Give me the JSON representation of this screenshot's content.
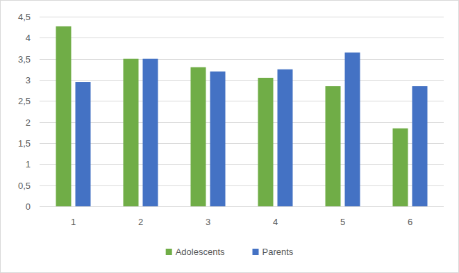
{
  "chart_data": {
    "type": "bar",
    "categories": [
      "1",
      "2",
      "3",
      "4",
      "5",
      "6"
    ],
    "series": [
      {
        "name": "Adolescents",
        "color": "#70ad47",
        "values": [
          4.27,
          3.5,
          3.3,
          3.05,
          2.85,
          1.85
        ]
      },
      {
        "name": "Parents",
        "color": "#4472c4",
        "values": [
          2.95,
          3.5,
          3.2,
          3.25,
          3.65,
          2.85
        ]
      }
    ],
    "ylim": [
      0,
      4.5
    ],
    "yticks": [
      0,
      {
        "value": 0.5,
        "label": "0,5"
      },
      1,
      {
        "value": 1.5,
        "label": "1,5"
      },
      2,
      {
        "value": 2.5,
        "label": "2,5"
      },
      3,
      {
        "value": 3.5,
        "label": "3,5"
      },
      4,
      {
        "value": 4.5,
        "label": "4,5"
      }
    ],
    "grid": true,
    "legend": "bottom"
  }
}
